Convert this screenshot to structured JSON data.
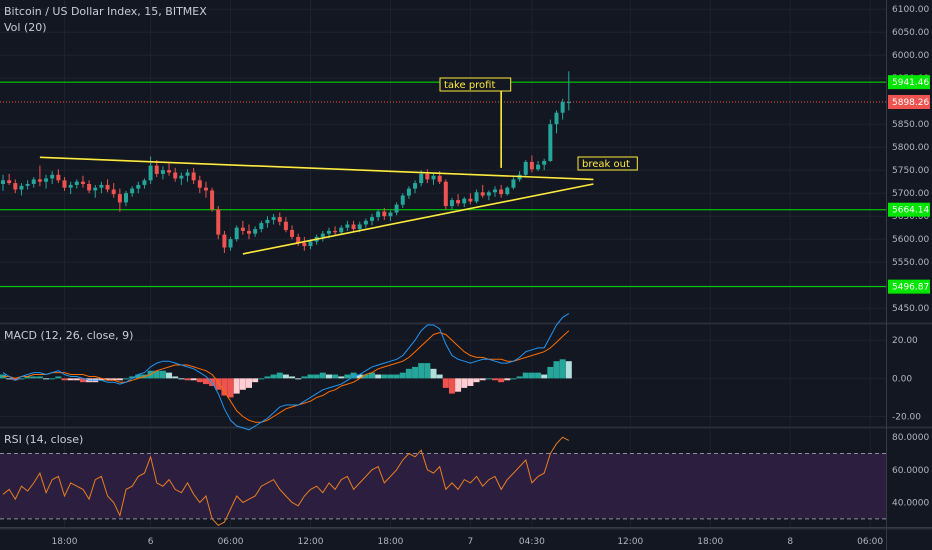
{
  "header": {
    "symbol": "Bitcoin / US Dollar Index, 15, BITMEX",
    "volume": "Vol (20)",
    "macd": "MACD (12, 26, close, 9)",
    "rsi": "RSI (14, close)"
  },
  "colors": {
    "background": "#131722",
    "up": "#26a69a",
    "down": "#ef5350",
    "trend": "#ffeb3b",
    "level": "#00e600",
    "macd_line": "#2196f3",
    "signal_line": "#ff6d00",
    "rsi_line": "#e67e22",
    "rsi_band": "#2b1e3f"
  },
  "annotations": {
    "take_profit": "take profit",
    "break_out": "break out"
  },
  "chart_data": [
    {
      "type": "candlestick",
      "title": "Bitcoin / US Dollar Index, 15, BITMEX",
      "ylim": [
        5420,
        6120
      ],
      "y_ticks": [
        "6100.00",
        "6050.00",
        "6000.00",
        "5950.00",
        "5850.00",
        "5800.00",
        "5750.00",
        "5700.00",
        "5650.00",
        "5600.00",
        "5550.00",
        "5500.00",
        "5450.00"
      ],
      "x_ticks": [
        "18:00",
        "6",
        "06:00",
        "12:00",
        "18:00",
        "7",
        "04:30",
        "12:00",
        "18:00",
        "8",
        "06:00"
      ],
      "price_labels": [
        {
          "text": "5941.46",
          "value": 5941.46,
          "color": "#00e600"
        },
        {
          "text": "5898.26",
          "value": 5898.26,
          "color": "#ef5350"
        },
        {
          "text": "5664.14",
          "value": 5664.14,
          "color": "#00e600"
        },
        {
          "text": "5496.87",
          "value": 5496.87,
          "color": "#00e600"
        }
      ],
      "horizontal_lines": [
        5941.46,
        5664.14,
        5496.87
      ],
      "last_price": 5898.26,
      "candles": [
        [
          5720,
          5740,
          5705,
          5728
        ],
        [
          5728,
          5742,
          5718,
          5722
        ],
        [
          5722,
          5730,
          5700,
          5708
        ],
        [
          5708,
          5722,
          5695,
          5716
        ],
        [
          5716,
          5728,
          5708,
          5720
        ],
        [
          5720,
          5735,
          5712,
          5730
        ],
        [
          5730,
          5760,
          5715,
          5725
        ],
        [
          5725,
          5740,
          5710,
          5732
        ],
        [
          5732,
          5748,
          5720,
          5740
        ],
        [
          5740,
          5752,
          5722,
          5728
        ],
        [
          5728,
          5735,
          5705,
          5712
        ],
        [
          5712,
          5725,
          5698,
          5718
        ],
        [
          5718,
          5730,
          5710,
          5725
        ],
        [
          5725,
          5738,
          5712,
          5720
        ],
        [
          5720,
          5728,
          5700,
          5706
        ],
        [
          5706,
          5718,
          5690,
          5712
        ],
        [
          5712,
          5725,
          5700,
          5718
        ],
        [
          5718,
          5730,
          5702,
          5708
        ],
        [
          5708,
          5722,
          5690,
          5698
        ],
        [
          5698,
          5710,
          5660,
          5680
        ],
        [
          5680,
          5705,
          5672,
          5700
        ],
        [
          5700,
          5715,
          5692,
          5710
        ],
        [
          5710,
          5725,
          5700,
          5718
        ],
        [
          5718,
          5732,
          5710,
          5728
        ],
        [
          5728,
          5780,
          5720,
          5760
        ],
        [
          5760,
          5772,
          5735,
          5742
        ],
        [
          5742,
          5758,
          5730,
          5750
        ],
        [
          5750,
          5765,
          5738,
          5745
        ],
        [
          5745,
          5755,
          5725,
          5732
        ],
        [
          5732,
          5745,
          5718,
          5738
        ],
        [
          5738,
          5752,
          5725,
          5745
        ],
        [
          5745,
          5755,
          5720,
          5728
        ],
        [
          5728,
          5738,
          5700,
          5712
        ],
        [
          5712,
          5725,
          5690,
          5706
        ],
        [
          5706,
          5712,
          5660,
          5665
        ],
        [
          5665,
          5672,
          5600,
          5610
        ],
        [
          5610,
          5618,
          5570,
          5582
        ],
        [
          5582,
          5605,
          5575,
          5600
        ],
        [
          5600,
          5630,
          5595,
          5625
        ],
        [
          5625,
          5640,
          5610,
          5618
        ],
        [
          5618,
          5632,
          5600,
          5612
        ],
        [
          5612,
          5628,
          5605,
          5622
        ],
        [
          5622,
          5640,
          5615,
          5635
        ],
        [
          5635,
          5650,
          5625,
          5642
        ],
        [
          5642,
          5655,
          5632,
          5648
        ],
        [
          5648,
          5658,
          5630,
          5638
        ],
        [
          5638,
          5648,
          5615,
          5620
        ],
        [
          5620,
          5630,
          5600,
          5605
        ],
        [
          5605,
          5612,
          5585,
          5592
        ],
        [
          5592,
          5605,
          5575,
          5585
        ],
        [
          5585,
          5600,
          5578,
          5595
        ],
        [
          5595,
          5610,
          5588,
          5605
        ],
        [
          5605,
          5618,
          5595,
          5612
        ],
        [
          5612,
          5625,
          5602,
          5618
        ],
        [
          5618,
          5628,
          5608,
          5615
        ],
        [
          5615,
          5630,
          5610,
          5625
        ],
        [
          5625,
          5640,
          5618,
          5632
        ],
        [
          5632,
          5640,
          5615,
          5622
        ],
        [
          5622,
          5638,
          5615,
          5632
        ],
        [
          5632,
          5645,
          5625,
          5640
        ],
        [
          5640,
          5655,
          5630,
          5648
        ],
        [
          5648,
          5665,
          5640,
          5660
        ],
        [
          5660,
          5668,
          5642,
          5650
        ],
        [
          5650,
          5662,
          5640,
          5658
        ],
        [
          5658,
          5680,
          5652,
          5675
        ],
        [
          5675,
          5700,
          5668,
          5695
        ],
        [
          5695,
          5715,
          5688,
          5710
        ],
        [
          5710,
          5728,
          5700,
          5722
        ],
        [
          5722,
          5750,
          5715,
          5742
        ],
        [
          5742,
          5752,
          5722,
          5730
        ],
        [
          5730,
          5745,
          5718,
          5738
        ],
        [
          5738,
          5748,
          5720,
          5725
        ],
        [
          5725,
          5730,
          5665,
          5672
        ],
        [
          5672,
          5690,
          5665,
          5685
        ],
        [
          5685,
          5698,
          5672,
          5678
        ],
        [
          5678,
          5692,
          5670,
          5688
        ],
        [
          5688,
          5700,
          5676,
          5682
        ],
        [
          5682,
          5708,
          5678,
          5702
        ],
        [
          5702,
          5718,
          5690,
          5695
        ],
        [
          5695,
          5706,
          5685,
          5702
        ],
        [
          5702,
          5715,
          5692,
          5708
        ],
        [
          5708,
          5718,
          5690,
          5698
        ],
        [
          5698,
          5715,
          5695,
          5712
        ],
        [
          5712,
          5735,
          5708,
          5730
        ],
        [
          5730,
          5748,
          5725,
          5740
        ],
        [
          5740,
          5772,
          5735,
          5768
        ],
        [
          5768,
          5782,
          5745,
          5752
        ],
        [
          5752,
          5770,
          5748,
          5762
        ],
        [
          5762,
          5775,
          5750,
          5770
        ],
        [
          5770,
          5860,
          5768,
          5850
        ],
        [
          5850,
          5880,
          5830,
          5875
        ],
        [
          5875,
          5905,
          5860,
          5898
        ],
        [
          5898,
          5965,
          5880,
          5898
        ]
      ],
      "trend_lines": [
        {
          "name": "upper trendline",
          "points": [
            [
              6,
              5778
            ],
            [
              96,
              5730
            ]
          ]
        },
        {
          "name": "lower trendline",
          "points": [
            [
              39,
              5568
            ],
            [
              96,
              5720
            ]
          ]
        },
        {
          "name": "take profit",
          "points": [
            [
              81,
              5755
            ],
            [
              81,
              5941.46
            ]
          ]
        }
      ]
    },
    {
      "type": "line",
      "title": "MACD (12, 26, close, 9)",
      "ylim": [
        -25,
        28
      ],
      "y_ticks": [
        20,
        0,
        -20
      ],
      "y_tick_labels": [
        "20.00",
        "0.00",
        "-20.00"
      ],
      "series": [
        {
          "role": "macd_line",
          "values": [
            3,
            1,
            -1,
            1,
            2,
            3,
            3,
            2,
            3,
            4,
            2,
            1,
            1,
            0,
            -1,
            -1,
            -1,
            -2,
            -2,
            -3,
            -2,
            0,
            2,
            3,
            6,
            8,
            9,
            9,
            8,
            7,
            6,
            5,
            3,
            1,
            -2,
            -8,
            -16,
            -22,
            -25,
            -26,
            -27,
            -25,
            -23,
            -21,
            -18,
            -15,
            -14,
            -14,
            -14,
            -12,
            -10,
            -8,
            -6,
            -5,
            -4,
            -3,
            -1,
            1,
            2,
            4,
            6,
            7,
            8,
            9,
            10,
            12,
            16,
            20,
            25,
            28,
            28,
            26,
            18,
            12,
            10,
            9,
            8,
            9,
            10,
            10,
            9,
            8,
            8,
            9,
            11,
            14,
            15,
            16,
            16,
            22,
            28,
            32,
            34
          ]
        },
        {
          "role": "signal_line",
          "values": [
            1,
            1,
            0,
            1,
            1,
            2,
            2,
            2,
            3,
            3,
            3,
            2,
            2,
            2,
            1,
            1,
            0,
            -1,
            -1,
            -2,
            -2,
            -1,
            0,
            1,
            2,
            4,
            5,
            6,
            7,
            7,
            7,
            6,
            5,
            4,
            2,
            -2,
            -7,
            -12,
            -17,
            -20,
            -22,
            -23,
            -23,
            -22,
            -20,
            -18,
            -16,
            -15,
            -14,
            -13,
            -12,
            -10,
            -9,
            -7,
            -6,
            -4,
            -3,
            -2,
            0,
            2,
            3,
            5,
            6,
            7,
            8,
            9,
            11,
            14,
            17,
            20,
            23,
            24,
            23,
            20,
            17,
            14,
            12,
            11,
            11,
            10,
            10,
            10,
            9,
            9,
            10,
            11,
            12,
            13,
            14,
            16,
            19,
            22,
            25
          ]
        },
        {
          "role": "histogram",
          "values": [
            2,
            0,
            -1,
            0,
            1,
            1,
            1,
            0,
            0,
            1,
            -1,
            -1,
            -1,
            -2,
            -2,
            -2,
            -1,
            -1,
            -1,
            -1,
            0,
            1,
            2,
            2,
            4,
            4,
            4,
            3,
            1,
            0,
            -1,
            -1,
            -2,
            -3,
            -4,
            -6,
            -9,
            -10,
            -8,
            -6,
            -5,
            -2,
            0,
            1,
            2,
            3,
            2,
            1,
            0,
            1,
            2,
            2,
            3,
            2,
            2,
            1,
            2,
            3,
            2,
            2,
            3,
            2,
            2,
            2,
            2,
            3,
            5,
            6,
            8,
            8,
            5,
            2,
            -5,
            -8,
            -7,
            -5,
            -4,
            -2,
            -1,
            0,
            -1,
            -2,
            -1,
            0,
            1,
            3,
            3,
            3,
            2,
            6,
            9,
            10,
            9
          ]
        }
      ]
    },
    {
      "type": "line",
      "title": "RSI (14, close)",
      "ylim": [
        25,
        85
      ],
      "y_ticks": [
        80,
        60,
        40
      ],
      "y_tick_labels": [
        "80.0000",
        "60.0000",
        "40.0000"
      ],
      "bands": [
        30,
        70
      ],
      "series": [
        {
          "role": "rsi",
          "values": [
            45,
            48,
            42,
            50,
            47,
            52,
            58,
            46,
            54,
            56,
            44,
            52,
            50,
            48,
            42,
            54,
            56,
            44,
            40,
            32,
            48,
            50,
            56,
            58,
            68,
            52,
            50,
            54,
            48,
            46,
            52,
            45,
            40,
            44,
            30,
            26,
            28,
            36,
            44,
            40,
            42,
            44,
            50,
            52,
            54,
            48,
            44,
            40,
            38,
            44,
            48,
            50,
            46,
            52,
            48,
            54,
            56,
            48,
            52,
            56,
            60,
            62,
            52,
            56,
            60,
            66,
            70,
            68,
            72,
            60,
            58,
            62,
            48,
            52,
            48,
            54,
            52,
            56,
            50,
            54,
            56,
            48,
            54,
            58,
            62,
            66,
            52,
            56,
            58,
            70,
            76,
            80,
            78
          ]
        }
      ]
    }
  ]
}
